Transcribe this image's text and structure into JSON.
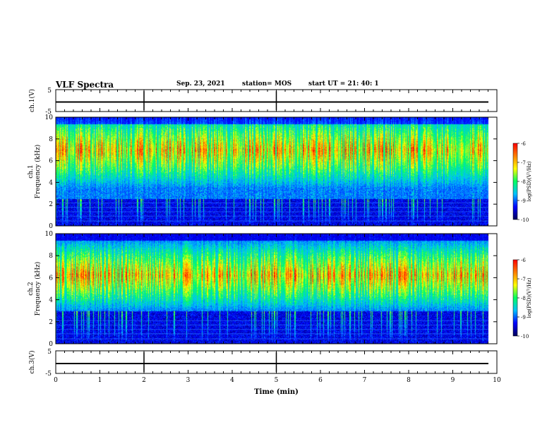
{
  "header": {
    "title": "VLF Spectra",
    "date": "Sep. 23, 2021",
    "station": "station= MOS",
    "start_time": "start  UT =   21: 40: 1"
  },
  "chart_data": [
    {
      "type": "line",
      "panel": "ch1_waveform",
      "ylabel": "ch.1(V)",
      "ylim": [
        -5,
        5
      ],
      "yticks": [
        "5",
        "-5"
      ],
      "xlim": [
        0,
        10
      ],
      "series": [
        {
          "values": [
            0,
            0,
            0,
            0,
            0,
            0,
            0,
            0,
            0,
            0,
            0
          ]
        }
      ]
    },
    {
      "type": "heatmap",
      "panel": "ch1_spectrogram",
      "ylabel_line1": "ch.1",
      "ylabel_line2": "Frequency (kHz)",
      "ylim": [
        0,
        10
      ],
      "yticks": [
        "0",
        "2",
        "4",
        "6",
        "8",
        "10"
      ],
      "xlim": [
        0,
        9.83
      ],
      "dominant_band_khz": [
        2.5,
        10
      ],
      "quiet_band_khz": [
        0,
        2.5
      ],
      "peak_log_psd_band_khz": [
        5,
        9
      ],
      "colorbar": {
        "label": "log(PSD)(V²/Hz)",
        "range": [
          -10,
          -6
        ],
        "ticks": [
          "-6",
          "-7",
          "-8",
          "-9",
          "-10"
        ]
      }
    },
    {
      "type": "heatmap",
      "panel": "ch2_spectrogram",
      "ylabel_line1": "ch.2",
      "ylabel_line2": "Frequency (kHz)",
      "ylim": [
        0,
        10
      ],
      "yticks": [
        "0",
        "2",
        "4",
        "6",
        "8",
        "10"
      ],
      "xlim": [
        0,
        9.83
      ],
      "dominant_band_khz": [
        3,
        10
      ],
      "quiet_band_khz": [
        0,
        3
      ],
      "peak_log_psd_band_khz": [
        4.5,
        8
      ],
      "colorbar": {
        "label": "log(PSD)(V²/Hz)",
        "range": [
          -10,
          -6
        ],
        "ticks": [
          "-6",
          "-7",
          "-8",
          "-9",
          "-10"
        ]
      }
    },
    {
      "type": "line",
      "panel": "ch3_waveform",
      "ylabel": "ch.3(V)",
      "ylim": [
        -5,
        5
      ],
      "yticks": [
        "5",
        "-5"
      ],
      "xlim": [
        0,
        10
      ],
      "xlabel": "Time  (min)",
      "xticks": [
        "0",
        "1",
        "2",
        "3",
        "4",
        "5",
        "6",
        "7",
        "8",
        "9",
        "10"
      ],
      "series": [
        {
          "values": [
            0,
            0,
            0,
            0,
            0,
            0,
            0,
            0,
            0,
            0,
            0
          ]
        }
      ]
    }
  ],
  "colors": {
    "colormap": [
      "#00005a",
      "#0000ff",
      "#00c0ff",
      "#00ff60",
      "#ffff00",
      "#ff8000",
      "#ff0000",
      "#ffffff"
    ],
    "frame": "#000000",
    "background": "#ffffff"
  }
}
